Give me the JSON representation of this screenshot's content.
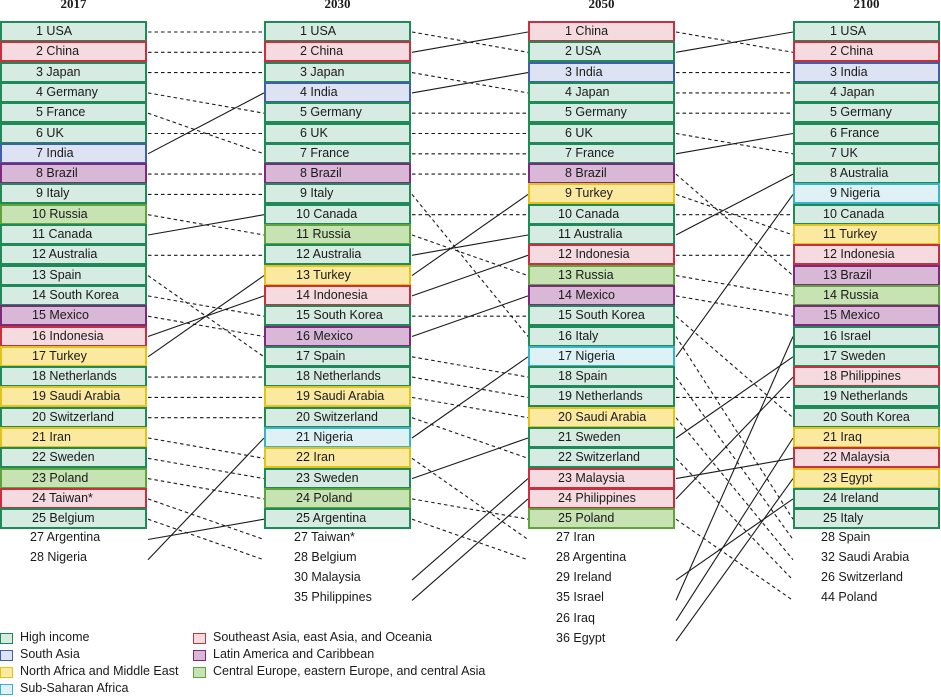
{
  "colors": {
    "high_income": {
      "fill": "#d6ebe1",
      "border": "#1f8a57"
    },
    "south_asia": {
      "fill": "#dde3f3",
      "border": "#3f5fa8"
    },
    "north_africa_middle_east": {
      "fill": "#fce9a0",
      "border": "#e3c21a"
    },
    "sub_saharan_africa": {
      "fill": "#def1f5",
      "border": "#39b3c7"
    },
    "southeast_asia": {
      "fill": "#f5dbe0",
      "border": "#c8303f"
    },
    "latin_america": {
      "fill": "#d8b8d6",
      "border": "#7d2a7d"
    },
    "central_europe": {
      "fill": "#c7e2b3",
      "border": "#5ea33b"
    }
  },
  "columns": [
    {
      "year": "2017",
      "boxes": [
        {
          "label": "1 USA",
          "region": "high_income"
        },
        {
          "label": "2 China",
          "region": "southeast_asia"
        },
        {
          "label": "3 Japan",
          "region": "high_income"
        },
        {
          "label": "4 Germany",
          "region": "high_income"
        },
        {
          "label": "5 France",
          "region": "high_income"
        },
        {
          "label": "6 UK",
          "region": "high_income"
        },
        {
          "label": "7 India",
          "region": "south_asia"
        },
        {
          "label": "8 Brazil",
          "region": "latin_america"
        },
        {
          "label": "9 Italy",
          "region": "high_income"
        },
        {
          "label": "10 Russia",
          "region": "central_europe"
        },
        {
          "label": "11 Canada",
          "region": "high_income"
        },
        {
          "label": "12 Australia",
          "region": "high_income"
        },
        {
          "label": "13 Spain",
          "region": "high_income"
        },
        {
          "label": "14 South Korea",
          "region": "high_income"
        },
        {
          "label": "15 Mexico",
          "region": "latin_america"
        },
        {
          "label": "16 Indonesia",
          "region": "southeast_asia"
        },
        {
          "label": "17 Turkey",
          "region": "north_africa_middle_east"
        },
        {
          "label": "18 Netherlands",
          "region": "high_income"
        },
        {
          "label": "19 Saudi Arabia",
          "region": "north_africa_middle_east"
        },
        {
          "label": "20 Switzerland",
          "region": "high_income"
        },
        {
          "label": "21 Iran",
          "region": "north_africa_middle_east"
        },
        {
          "label": "22 Sweden",
          "region": "high_income"
        },
        {
          "label": "23 Poland",
          "region": "central_europe"
        },
        {
          "label": "24 Taiwan*",
          "region": "southeast_asia"
        },
        {
          "label": "25 Belgium",
          "region": "high_income"
        }
      ],
      "extras": [
        "27 Argentina",
        "28 Nigeria"
      ]
    },
    {
      "year": "2030",
      "boxes": [
        {
          "label": "1 USA",
          "region": "high_income"
        },
        {
          "label": "2 China",
          "region": "southeast_asia"
        },
        {
          "label": "3 Japan",
          "region": "high_income"
        },
        {
          "label": "4 India",
          "region": "south_asia"
        },
        {
          "label": "5 Germany",
          "region": "high_income"
        },
        {
          "label": "6 UK",
          "region": "high_income"
        },
        {
          "label": "7 France",
          "region": "high_income"
        },
        {
          "label": "8 Brazil",
          "region": "latin_america"
        },
        {
          "label": "9 Italy",
          "region": "high_income"
        },
        {
          "label": "10 Canada",
          "region": "high_income"
        },
        {
          "label": "11 Russia",
          "region": "central_europe"
        },
        {
          "label": "12 Australia",
          "region": "high_income"
        },
        {
          "label": "13 Turkey",
          "region": "north_africa_middle_east"
        },
        {
          "label": "14 Indonesia",
          "region": "southeast_asia"
        },
        {
          "label": "15 South Korea",
          "region": "high_income"
        },
        {
          "label": "16 Mexico",
          "region": "latin_america"
        },
        {
          "label": "17 Spain",
          "region": "high_income"
        },
        {
          "label": "18 Netherlands",
          "region": "high_income"
        },
        {
          "label": "19 Saudi Arabia",
          "region": "north_africa_middle_east"
        },
        {
          "label": "20 Switzerland",
          "region": "high_income"
        },
        {
          "label": "21 Nigeria",
          "region": "sub_saharan_africa"
        },
        {
          "label": "22 Iran",
          "region": "north_africa_middle_east"
        },
        {
          "label": "23 Sweden",
          "region": "high_income"
        },
        {
          "label": "24 Poland",
          "region": "central_europe"
        },
        {
          "label": "25 Argentina",
          "region": "high_income"
        }
      ],
      "extras": [
        "27 Taiwan*",
        "28 Belgium",
        "30 Malaysia",
        "35 Philippines"
      ]
    },
    {
      "year": "2050",
      "boxes": [
        {
          "label": "1 China",
          "region": "southeast_asia"
        },
        {
          "label": "2 USA",
          "region": "high_income"
        },
        {
          "label": "3 India",
          "region": "south_asia"
        },
        {
          "label": "4 Japan",
          "region": "high_income"
        },
        {
          "label": "5 Germany",
          "region": "high_income"
        },
        {
          "label": "6 UK",
          "region": "high_income"
        },
        {
          "label": "7 France",
          "region": "high_income"
        },
        {
          "label": "8 Brazil",
          "region": "latin_america"
        },
        {
          "label": "9 Turkey",
          "region": "north_africa_middle_east"
        },
        {
          "label": "10 Canada",
          "region": "high_income"
        },
        {
          "label": "11 Australia",
          "region": "high_income"
        },
        {
          "label": "12 Indonesia",
          "region": "southeast_asia"
        },
        {
          "label": "13 Russia",
          "region": "central_europe"
        },
        {
          "label": "14 Mexico",
          "region": "latin_america"
        },
        {
          "label": "15 South Korea",
          "region": "high_income"
        },
        {
          "label": "16 Italy",
          "region": "high_income"
        },
        {
          "label": "17 Nigeria",
          "region": "sub_saharan_africa"
        },
        {
          "label": "18 Spain",
          "region": "high_income"
        },
        {
          "label": "19 Netherlands",
          "region": "high_income"
        },
        {
          "label": "20 Saudi Arabia",
          "region": "north_africa_middle_east"
        },
        {
          "label": "21 Sweden",
          "region": "high_income"
        },
        {
          "label": "22 Switzerland",
          "region": "high_income"
        },
        {
          "label": "23 Malaysia",
          "region": "southeast_asia"
        },
        {
          "label": "24 Philippines",
          "region": "southeast_asia"
        },
        {
          "label": "25 Poland",
          "region": "central_europe"
        }
      ],
      "extras": [
        "27 Iran",
        "28 Argentina",
        "29 Ireland",
        "35 Israel",
        "26 Iraq",
        "36 Egypt"
      ]
    },
    {
      "year": "2100",
      "boxes": [
        {
          "label": "1 USA",
          "region": "high_income"
        },
        {
          "label": "2 China",
          "region": "southeast_asia"
        },
        {
          "label": "3 India",
          "region": "south_asia"
        },
        {
          "label": "4 Japan",
          "region": "high_income"
        },
        {
          "label": "5 Germany",
          "region": "high_income"
        },
        {
          "label": "6 France",
          "region": "high_income"
        },
        {
          "label": "7 UK",
          "region": "high_income"
        },
        {
          "label": "8 Australia",
          "region": "high_income"
        },
        {
          "label": "9 Nigeria",
          "region": "sub_saharan_africa"
        },
        {
          "label": "10 Canada",
          "region": "high_income"
        },
        {
          "label": "11 Turkey",
          "region": "north_africa_middle_east"
        },
        {
          "label": "12 Indonesia",
          "region": "southeast_asia"
        },
        {
          "label": "13 Brazil",
          "region": "latin_america"
        },
        {
          "label": "14 Russia",
          "region": "central_europe"
        },
        {
          "label": "15 Mexico",
          "region": "latin_america"
        },
        {
          "label": "16 Israel",
          "region": "high_income"
        },
        {
          "label": "17 Sweden",
          "region": "high_income"
        },
        {
          "label": "18 Philippines",
          "region": "southeast_asia"
        },
        {
          "label": "19 Netherlands",
          "region": "high_income"
        },
        {
          "label": "20 South Korea",
          "region": "high_income"
        },
        {
          "label": "21 Iraq",
          "region": "north_africa_middle_east"
        },
        {
          "label": "22 Malaysia",
          "region": "southeast_asia"
        },
        {
          "label": "23 Egypt",
          "region": "north_africa_middle_east"
        },
        {
          "label": "24 Ireland",
          "region": "high_income"
        },
        {
          "label": "25 Italy",
          "region": "high_income"
        }
      ],
      "extras": [
        "28 Spain",
        "32 Saudi Arabia",
        "26 Switzerland",
        "44 Poland"
      ]
    }
  ],
  "legend": [
    {
      "label": "High income",
      "region": "high_income"
    },
    {
      "label": "South Asia",
      "region": "south_asia"
    },
    {
      "label": "North Africa and Middle East",
      "region": "north_africa_middle_east"
    },
    {
      "label": "Sub-Saharan Africa",
      "region": "sub_saharan_africa"
    },
    {
      "label": "Southeast Asia, east Asia, and Oceania",
      "region": "southeast_asia"
    },
    {
      "label": "Latin America and Caribbean",
      "region": "latin_america"
    },
    {
      "label": "Central Europe, eastern Europe, and central Asia",
      "region": "central_europe"
    }
  ]
}
